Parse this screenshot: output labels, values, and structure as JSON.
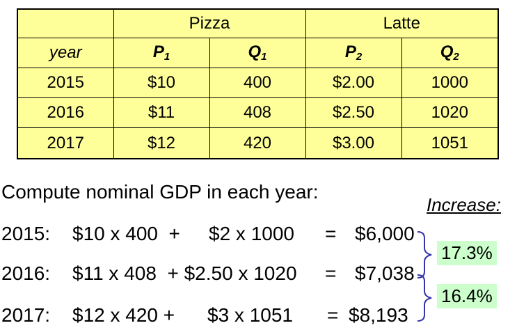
{
  "table": {
    "group_headers": {
      "pizza": "Pizza",
      "latte": "Latte"
    },
    "column_headers": {
      "year": "year",
      "p1": "P",
      "p1_sub": "1",
      "q1": "Q",
      "q1_sub": "1",
      "p2": "P",
      "p2_sub": "2",
      "q2": "Q",
      "q2_sub": "2"
    },
    "rows": [
      {
        "year": "2015",
        "p1": "$10",
        "q1": "400",
        "p2": "$2.00",
        "q2": "1000"
      },
      {
        "year": "2016",
        "p1": "$11",
        "q1": "408",
        "p2": "$2.50",
        "q2": "1020"
      },
      {
        "year": "2017",
        "p1": "$12",
        "q1": "420",
        "p2": "$3.00",
        "q2": "1051"
      }
    ],
    "background_color": "#ffff99"
  },
  "prompt": "Compute nominal GDP in each year:",
  "increase_label": "Increase:",
  "computations": [
    {
      "label": "2015:",
      "term1": "$10 x 400  +",
      "term2": "$2 x 1000",
      "equals": "=",
      "result": "$6,000"
    },
    {
      "label": "2016:",
      "term1": "$11 x 408  + $2.50 x 1020",
      "term2": "",
      "equals": "=",
      "result": "$7,038"
    },
    {
      "label": "2017:",
      "term1": "$12 x 420 +",
      "term2": "$3 x 1051",
      "equals": "=",
      "result": "$8,193"
    }
  ],
  "increases": [
    {
      "value": "17.3%"
    },
    {
      "value": "16.4%"
    }
  ],
  "colors": {
    "increase_box": "#ccffcc",
    "brace": "#3333aa"
  }
}
